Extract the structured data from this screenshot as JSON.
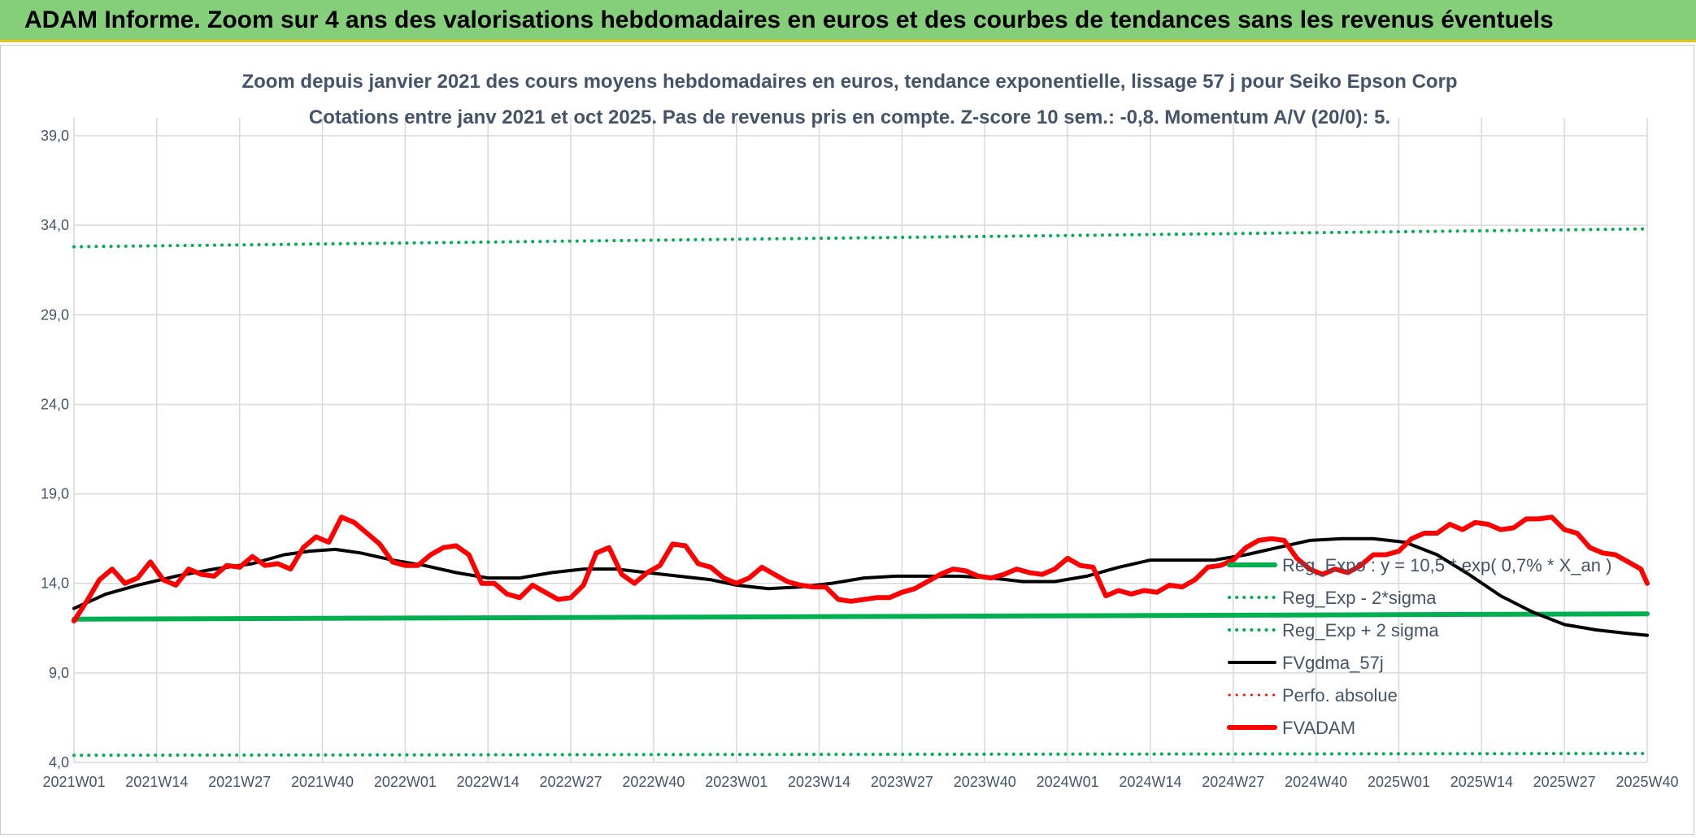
{
  "banner": {
    "title": "ADAM Informe. Zoom sur 4 ans des valorisations hebdomadaires en euros et des courbes de tendances sans les revenus éventuels"
  },
  "chart_data": {
    "type": "line",
    "title": "Zoom depuis janvier 2021 des cours moyens hebdomadaires en euros, tendance exponentielle, lissage 57 j pour Seiko Epson Corp",
    "subtitle": "Cotations entre janv 2021 et oct 2025. Pas de revenus pris en compte. Z-score 10 sem.: -0,8. Momentum A/V (20/0): 5.",
    "xlabel": "",
    "ylabel": "",
    "ylim": [
      4,
      40
    ],
    "yticks": [
      4,
      9,
      14,
      19,
      24,
      29,
      34,
      39
    ],
    "ytick_labels": [
      "4,0",
      "9,0",
      "14,0",
      "19,0",
      "24,0",
      "29,0",
      "34,0",
      "39,0"
    ],
    "x_range": [
      0,
      247
    ],
    "xticks": [
      0,
      13,
      26,
      39,
      52,
      65,
      78,
      91,
      104,
      117,
      130,
      143,
      156,
      169,
      182,
      195,
      208,
      221,
      234,
      247
    ],
    "xtick_labels": [
      "2021W01",
      "2021W14",
      "2021W27",
      "2021W40",
      "2022W01",
      "2022W14",
      "2022W27",
      "2022W40",
      "2023W01",
      "2023W14",
      "2023W27",
      "2023W40",
      "2024W01",
      "2024W14",
      "2024W27",
      "2024W40",
      "2025W01",
      "2025W14",
      "2025W27",
      "2025W40"
    ],
    "grid": true,
    "legend_position": "right",
    "series": [
      {
        "name": "Reg_Expo : y = 10,5 * exp( 0,7% *  X_an )",
        "style": "solid",
        "color": "#00b050",
        "width": 6,
        "x": [
          0,
          247
        ],
        "y": [
          12.0,
          12.3
        ]
      },
      {
        "name": "Reg_Exp - 2*sigma",
        "style": "dotted",
        "color": "#00b050",
        "width": 4,
        "x": [
          0,
          247
        ],
        "y": [
          4.4,
          4.5
        ]
      },
      {
        "name": "Reg_Exp + 2 sigma",
        "style": "dotted",
        "color": "#00b050",
        "width": 4,
        "x": [
          0,
          247
        ],
        "y": [
          32.8,
          33.8
        ]
      },
      {
        "name": "FVgdma_57j",
        "style": "solid",
        "color": "#000000",
        "width": 4,
        "x": [
          0,
          5,
          10,
          16,
          22,
          28,
          33,
          37,
          41,
          45,
          50,
          55,
          60,
          65,
          70,
          75,
          80,
          85,
          90,
          95,
          100,
          104,
          109,
          114,
          119,
          124,
          129,
          134,
          139,
          144,
          149,
          154,
          159,
          164,
          169,
          174,
          179,
          184,
          189,
          194,
          199,
          204,
          209,
          214,
          219,
          224,
          229,
          234,
          239,
          244,
          247
        ],
        "y": [
          12.6,
          13.4,
          13.9,
          14.4,
          14.8,
          15.1,
          15.6,
          15.8,
          15.9,
          15.7,
          15.3,
          15.0,
          14.6,
          14.3,
          14.3,
          14.6,
          14.8,
          14.8,
          14.6,
          14.4,
          14.2,
          13.9,
          13.7,
          13.8,
          14.0,
          14.3,
          14.4,
          14.4,
          14.4,
          14.3,
          14.1,
          14.1,
          14.4,
          14.9,
          15.3,
          15.3,
          15.3,
          15.6,
          16.0,
          16.4,
          16.5,
          16.5,
          16.3,
          15.6,
          14.5,
          13.3,
          12.4,
          11.7,
          11.4,
          11.2,
          11.1
        ]
      },
      {
        "name": "Perfo. absolue",
        "style": "dotted",
        "color": "#ff0000",
        "width": 3,
        "x": [],
        "y": []
      },
      {
        "name": "FVADAM",
        "style": "solid",
        "color": "#ff0000",
        "width": 6,
        "x": [
          0,
          2,
          4,
          6,
          8,
          10,
          12,
          14,
          16,
          18,
          20,
          22,
          24,
          26,
          28,
          30,
          32,
          34,
          36,
          38,
          40,
          42,
          44,
          46,
          48,
          50,
          52,
          54,
          56,
          58,
          60,
          62,
          64,
          66,
          68,
          70,
          72,
          74,
          76,
          78,
          80,
          82,
          84,
          86,
          88,
          90,
          92,
          94,
          96,
          98,
          100,
          102,
          104,
          106,
          108,
          110,
          112,
          114,
          116,
          118,
          120,
          122,
          124,
          126,
          128,
          130,
          132,
          134,
          136,
          138,
          140,
          142,
          144,
          146,
          148,
          150,
          152,
          154,
          156,
          158,
          160,
          162,
          164,
          166,
          168,
          170,
          172,
          174,
          176,
          178,
          180,
          182,
          184,
          186,
          188,
          190,
          192,
          194,
          196,
          198,
          200,
          202,
          204,
          206,
          208,
          210,
          212,
          214,
          216,
          218,
          220,
          222,
          224,
          226,
          228,
          230,
          232,
          234,
          236,
          238,
          240,
          242,
          244,
          246,
          247
        ],
        "y": [
          11.9,
          13.0,
          14.2,
          14.8,
          14.0,
          14.3,
          15.2,
          14.2,
          13.9,
          14.8,
          14.5,
          14.4,
          15.0,
          14.9,
          15.5,
          15.0,
          15.1,
          14.8,
          16.0,
          16.6,
          16.3,
          17.7,
          17.4,
          16.8,
          16.2,
          15.2,
          15.0,
          15.0,
          15.6,
          16.0,
          16.1,
          15.6,
          14.0,
          14.0,
          13.4,
          13.2,
          13.9,
          13.5,
          13.1,
          13.2,
          13.9,
          15.7,
          16.0,
          14.5,
          14.0,
          14.6,
          15.0,
          16.2,
          16.1,
          15.1,
          14.9,
          14.3,
          14.0,
          14.3,
          14.9,
          14.5,
          14.1,
          13.9,
          13.8,
          13.8,
          13.1,
          13.0,
          13.1,
          13.2,
          13.2,
          13.5,
          13.7,
          14.1,
          14.5,
          14.8,
          14.7,
          14.4,
          14.3,
          14.5,
          14.8,
          14.6,
          14.5,
          14.8,
          15.4,
          15.0,
          14.9,
          13.3,
          13.6,
          13.4,
          13.6,
          13.5,
          13.9,
          13.8,
          14.2,
          14.9,
          15.0,
          15.3,
          16.0,
          16.4,
          16.5,
          16.4,
          15.4,
          14.8,
          14.5,
          14.8,
          14.6,
          15.0,
          15.6,
          15.6,
          15.8,
          16.5,
          16.8,
          16.8,
          17.3,
          17.0,
          17.4,
          17.3,
          17.0,
          17.1,
          17.6,
          17.6,
          17.7,
          17.0,
          16.8,
          16.0,
          15.7,
          15.6,
          15.2,
          14.8,
          14.0
        ]
      }
    ]
  }
}
